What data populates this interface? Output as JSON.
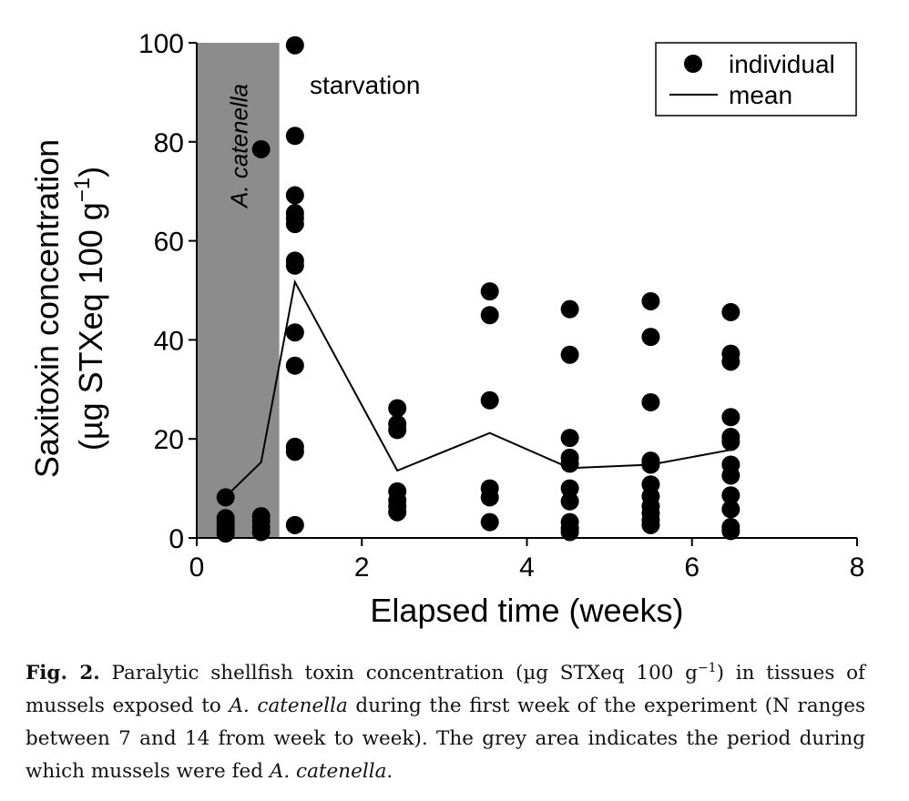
{
  "chart_data": {
    "type": "scatter",
    "title": "",
    "xlabel": "Elapsed time (weeks)",
    "ylabel_line1": "Saxitoxin concentration",
    "ylabel_line2_prefix": "(µg STXeq 100 g",
    "ylabel_line2_sup": "−1",
    "ylabel_line2_suffix": ")",
    "xlim": [
      0,
      8
    ],
    "ylim": [
      0,
      100
    ],
    "xticks": [
      "0",
      "2",
      "4",
      "6",
      "8"
    ],
    "yticks": [
      "0",
      "20",
      "40",
      "60",
      "80",
      "100"
    ],
    "xtick_values": [
      0,
      2,
      4,
      6,
      8
    ],
    "ytick_values": [
      0,
      20,
      40,
      60,
      80,
      100
    ],
    "grid": false,
    "legend_position": "top-right",
    "legend": {
      "individual": "individual",
      "mean": "mean"
    },
    "shaded_region": {
      "x_start": 0,
      "x_end": 1,
      "label": "A. catenella",
      "color": "#8c8c8c"
    },
    "annotation": {
      "text": "starvation",
      "x": 1.35,
      "y": 91
    },
    "colors": {
      "marker": "#000000",
      "line": "#000000",
      "shade": "#8c8c8c"
    },
    "series": [
      {
        "name": "individual",
        "points": [
          [
            0.35,
            8.2
          ],
          [
            0.35,
            4.0
          ],
          [
            0.35,
            3.2
          ],
          [
            0.35,
            2.4
          ],
          [
            0.35,
            1.6
          ],
          [
            0.35,
            0.9
          ],
          [
            0.78,
            78.5
          ],
          [
            0.78,
            4.4
          ],
          [
            0.78,
            3.4
          ],
          [
            0.78,
            2.2
          ],
          [
            0.78,
            1.2
          ],
          [
            1.19,
            99.5
          ],
          [
            1.19,
            81.2
          ],
          [
            1.19,
            69.2
          ],
          [
            1.19,
            65.6
          ],
          [
            1.19,
            64.6
          ],
          [
            1.19,
            63.4
          ],
          [
            1.19,
            56.0
          ],
          [
            1.19,
            55.0
          ],
          [
            1.19,
            41.5
          ],
          [
            1.19,
            34.8
          ],
          [
            1.19,
            18.4
          ],
          [
            1.19,
            17.4
          ],
          [
            1.19,
            2.6
          ],
          [
            2.43,
            26.2
          ],
          [
            2.43,
            23.0
          ],
          [
            2.43,
            21.8
          ],
          [
            2.43,
            9.4
          ],
          [
            2.43,
            7.6
          ],
          [
            2.43,
            6.4
          ],
          [
            2.43,
            5.2
          ],
          [
            3.55,
            49.8
          ],
          [
            3.55,
            45.0
          ],
          [
            3.55,
            27.8
          ],
          [
            3.55,
            10.0
          ],
          [
            3.55,
            8.2
          ],
          [
            3.55,
            3.2
          ],
          [
            4.52,
            46.2
          ],
          [
            4.52,
            37.0
          ],
          [
            4.52,
            20.2
          ],
          [
            4.52,
            16.2
          ],
          [
            4.52,
            15.0
          ],
          [
            4.52,
            10.0
          ],
          [
            4.52,
            7.4
          ],
          [
            4.52,
            3.2
          ],
          [
            4.52,
            2.0
          ],
          [
            4.52,
            1.2
          ],
          [
            5.5,
            47.8
          ],
          [
            5.5,
            40.6
          ],
          [
            5.5,
            27.4
          ],
          [
            5.5,
            15.6
          ],
          [
            5.5,
            14.8
          ],
          [
            5.5,
            10.8
          ],
          [
            5.5,
            8.4
          ],
          [
            5.5,
            6.4
          ],
          [
            5.5,
            5.0
          ],
          [
            5.5,
            3.6
          ],
          [
            5.5,
            2.6
          ],
          [
            6.47,
            45.6
          ],
          [
            6.47,
            37.2
          ],
          [
            6.47,
            35.6
          ],
          [
            6.47,
            24.4
          ],
          [
            6.47,
            20.4
          ],
          [
            6.47,
            19.4
          ],
          [
            6.47,
            14.8
          ],
          [
            6.47,
            12.6
          ],
          [
            6.47,
            8.6
          ],
          [
            6.47,
            5.8
          ],
          [
            6.47,
            2.2
          ],
          [
            6.47,
            1.4
          ]
        ]
      },
      {
        "name": "mean",
        "points": [
          [
            0.35,
            8.3
          ],
          [
            0.78,
            15.3
          ],
          [
            1.19,
            51.7
          ],
          [
            2.43,
            13.6
          ],
          [
            3.55,
            21.2
          ],
          [
            4.52,
            14.1
          ],
          [
            5.5,
            14.8
          ],
          [
            6.47,
            17.8
          ]
        ]
      }
    ]
  },
  "caption": {
    "label": "Fig. 2.",
    "text_1": " Paralytic shellfish toxin concentration (µg STXeq 100 g",
    "sup": "−1",
    "text_2": ") in tissues of mussels exposed to ",
    "species_1": "A. catenella",
    "text_3": " during the first week of the experiment (N ranges between 7 and 14 from week to week). The grey area indicates the period during which mussels were fed ",
    "species_2": "A. catenella",
    "text_4": "."
  }
}
